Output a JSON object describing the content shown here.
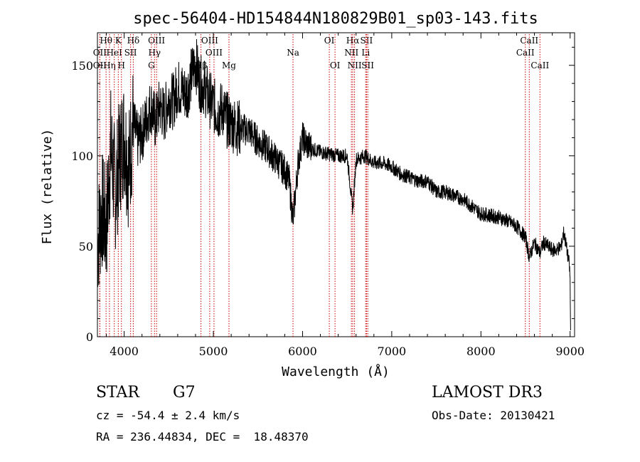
{
  "chart_data": {
    "type": "line",
    "title": "spec-56404-HD154844N180829B01_sp03-143.fits",
    "xlabel": "Wavelength (Å)",
    "ylabel": "Flux (relative)",
    "xlim": [
      3700,
      9050
    ],
    "ylim": [
      0,
      168
    ],
    "x_ticks": [
      4000,
      5000,
      6000,
      7000,
      8000,
      9000
    ],
    "y_ticks": [
      0,
      50,
      100,
      150
    ],
    "grid": false,
    "legend": "none",
    "series": [
      {
        "name": "spectrum",
        "x": [
          3700,
          3750,
          3800,
          3850,
          3900,
          3950,
          4000,
          4050,
          4100,
          4150,
          4200,
          4250,
          4300,
          4350,
          4400,
          4450,
          4500,
          4550,
          4600,
          4650,
          4700,
          4750,
          4800,
          4850,
          4900,
          4950,
          5000,
          5050,
          5100,
          5150,
          5200,
          5300,
          5400,
          5500,
          5600,
          5700,
          5800,
          5850,
          5893,
          5950,
          6000,
          6050,
          6100,
          6200,
          6300,
          6400,
          6500,
          6563,
          6600,
          6700,
          6800,
          6900,
          7000,
          7100,
          7200,
          7300,
          7400,
          7500,
          7600,
          7700,
          7800,
          7900,
          8000,
          8100,
          8200,
          8300,
          8400,
          8500,
          8542,
          8600,
          8662,
          8700,
          8800,
          8850,
          8900,
          8930,
          8950,
          8970,
          8990,
          9000,
          9005
        ],
        "y": [
          52,
          70,
          60,
          105,
          80,
          100,
          112,
          92,
          118,
          108,
          112,
          120,
          128,
          118,
          128,
          122,
          132,
          130,
          138,
          136,
          134,
          144,
          152,
          140,
          138,
          132,
          128,
          124,
          126,
          120,
          118,
          115,
          114,
          108,
          104,
          98,
          92,
          86,
          64,
          96,
          110,
          106,
          104,
          102,
          101,
          100,
          100,
          70,
          98,
          100,
          96,
          96,
          94,
          90,
          88,
          86,
          86,
          80,
          80,
          78,
          76,
          72,
          68,
          67,
          66,
          64,
          61,
          55,
          44,
          52,
          46,
          52,
          48,
          48,
          50,
          58,
          52,
          46,
          40,
          32,
          2
        ]
      }
    ],
    "spectral_lines": [
      {
        "label": "OII",
        "x": 3727,
        "row": 2
      },
      {
        "label": "OII",
        "x": 3727,
        "row": 3
      },
      {
        "label": "Hθ",
        "x": 3797,
        "row": 1
      },
      {
        "label": "Hη",
        "x": 3835,
        "row": 3
      },
      {
        "label": "HeI",
        "x": 3889,
        "row": 2
      },
      {
        "label": "K",
        "x": 3934,
        "row": 1
      },
      {
        "label": "H",
        "x": 3969,
        "row": 3
      },
      {
        "label": "Hδ",
        "x": 4102,
        "row": 1
      },
      {
        "label": "SII",
        "x": 4072,
        "row": 2
      },
      {
        "label": "OIII",
        "x": 4363,
        "row": 1
      },
      {
        "label": "Hγ",
        "x": 4340,
        "row": 2
      },
      {
        "label": "G",
        "x": 4305,
        "row": 3
      },
      {
        "label": "OIII",
        "x": 4959,
        "row": 1
      },
      {
        "label": "OIII",
        "x": 5007,
        "row": 2
      },
      {
        "label": "Hβ",
        "x": 4861,
        "row": 3
      },
      {
        "label": "Mg",
        "x": 5175,
        "row": 3
      },
      {
        "label": "Na",
        "x": 5893,
        "row": 2
      },
      {
        "label": "OI",
        "x": 6300,
        "row": 1
      },
      {
        "label": "OI",
        "x": 6364,
        "row": 3
      },
      {
        "label": "Hα",
        "x": 6563,
        "row": 1
      },
      {
        "label": "NII",
        "x": 6548,
        "row": 2
      },
      {
        "label": "NII",
        "x": 6583,
        "row": 3
      },
      {
        "label": "SII",
        "x": 6717,
        "row": 1
      },
      {
        "label": "Li",
        "x": 6708,
        "row": 2
      },
      {
        "label": "SII",
        "x": 6731,
        "row": 3
      },
      {
        "label": "CaII",
        "x": 8542,
        "row": 1
      },
      {
        "label": "CaII",
        "x": 8498,
        "row": 2
      },
      {
        "label": "CaII",
        "x": 8662,
        "row": 3
      }
    ]
  },
  "info": {
    "object_class": "STAR",
    "subclass": "G7",
    "survey": "LAMOST DR3",
    "redshift": "cz = -54.4 ± 2.4 km/s",
    "obs_date": "Obs-Date: 20130421",
    "coords": "RA = 236.44834, DEC =  18.48370"
  },
  "colors": {
    "line": "#000000",
    "marker": "#cc0000",
    "background": "#ffffff"
  }
}
